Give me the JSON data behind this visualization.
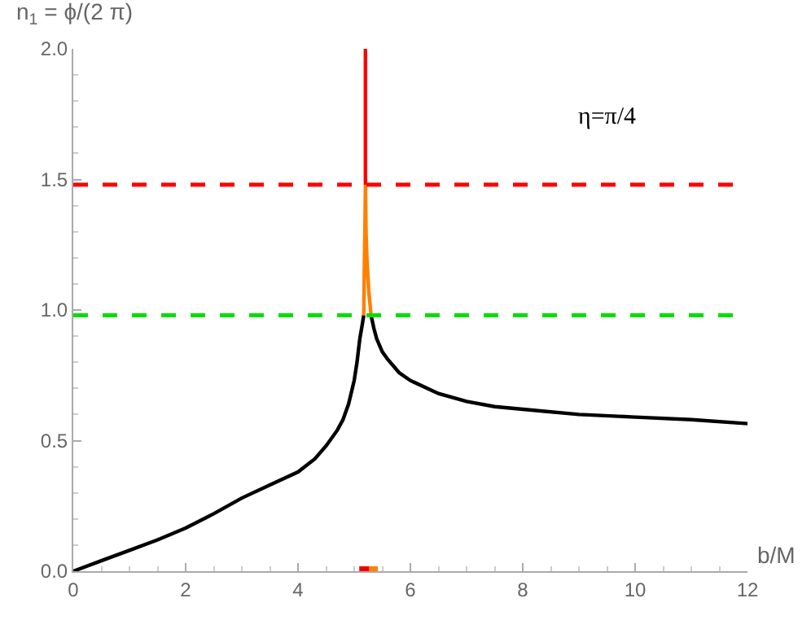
{
  "chart_data": {
    "type": "line",
    "xlabel": "b/M",
    "ylabel": "n$_{1}$ = ϕ/(2 π)",
    "annotations": [
      "η=π/4"
    ],
    "series": [
      {
        "color": "#000000",
        "x": [
          0,
          0.5,
          1,
          1.5,
          2,
          2.5,
          3,
          3.5,
          4,
          4.3,
          4.5,
          4.7,
          4.8,
          4.9,
          5.0,
          5.05,
          5.1,
          5.14,
          5.17
        ],
        "values": [
          0,
          0.04,
          0.08,
          0.12,
          0.165,
          0.22,
          0.28,
          0.33,
          0.38,
          0.43,
          0.48,
          0.54,
          0.58,
          0.64,
          0.73,
          0.8,
          0.89,
          0.94,
          0.98
        ]
      },
      {
        "color": "#000000",
        "x": [
          5.3,
          5.35,
          5.4,
          5.5,
          5.6,
          5.8,
          6,
          6.5,
          7,
          7.5,
          8,
          9,
          10,
          11,
          12
        ],
        "values": [
          0.98,
          0.93,
          0.89,
          0.84,
          0.81,
          0.76,
          0.73,
          0.68,
          0.65,
          0.63,
          0.62,
          0.6,
          0.59,
          0.58,
          0.565
        ]
      },
      {
        "color": "#ff8000",
        "x": [
          5.17,
          5.18,
          5.19,
          5.2,
          5.21,
          5.23,
          5.26,
          5.3
        ],
        "values": [
          0.98,
          1.15,
          1.3,
          1.48,
          1.3,
          1.18,
          1.07,
          0.98
        ]
      },
      {
        "color": "#ff0000",
        "x": [
          5.2,
          5.2
        ],
        "values": [
          1.48,
          2.0
        ]
      },
      {
        "color": "#f40000",
        "x": [
          5.09,
          5.27
        ],
        "values": [
          0,
          0
        ]
      },
      {
        "color": "#ff8000",
        "x": [
          5.27,
          5.42
        ],
        "values": [
          0,
          0
        ]
      }
    ],
    "ref_lines": [
      {
        "axis": "y",
        "value": 1.48,
        "color": "#ff0000",
        "line_style": "dashed"
      },
      {
        "axis": "y",
        "value": 0.98,
        "color": "#00e000",
        "line_style": "dashed"
      }
    ],
    "xlim": [
      0,
      12
    ],
    "xticks": [
      0,
      2,
      4,
      6,
      8,
      10,
      12
    ],
    "ylim": [
      0,
      2.0
    ],
    "yticks": [
      {
        "value": 0,
        "label": "0.0"
      },
      {
        "value": 0.5,
        "label": "0.5"
      },
      {
        "value": 1.0,
        "label": "1.0"
      },
      {
        "value": 1.5,
        "label": "1.5"
      },
      {
        "value": 2.0,
        "label": "2.0"
      }
    ],
    "grid": false,
    "marker": "none",
    "line_style": "solid"
  }
}
